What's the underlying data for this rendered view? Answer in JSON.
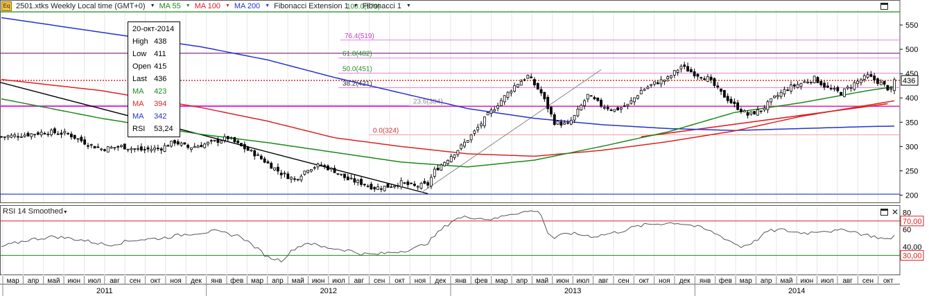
{
  "header": {
    "icon_label": "Eq",
    "symbol": "2501.xtks Weekly Local time (GMT+0)",
    "ma55_label": "MA 55",
    "ma100_label": "MA 100",
    "ma200_label": "MA 200",
    "fib_ext_label": "Fibonacci Extension 1",
    "fib_label": "Fibonacci 1"
  },
  "info": {
    "date": "20-окт-2014",
    "rows": [
      {
        "label": "High",
        "value": "438",
        "color": "#000000"
      },
      {
        "label": "Low",
        "value": "411",
        "color": "#000000"
      },
      {
        "label": "Open",
        "value": "415",
        "color": "#000000"
      },
      {
        "label": "Last",
        "value": "436",
        "color": "#000000"
      },
      {
        "label": "MA",
        "value": "423",
        "color": "#1a8a1a"
      },
      {
        "label": "MA",
        "value": "394",
        "color": "#dd2222"
      },
      {
        "label": "MA",
        "value": "342",
        "color": "#2233cc"
      },
      {
        "label": "RSI",
        "value": "53,24",
        "color": "#000000"
      }
    ]
  },
  "rsi": {
    "title": "RSI 14 Smoothed",
    "tick_labels": [
      "80",
      "70,00",
      "60",
      "40,00",
      "30,00"
    ]
  },
  "colors": {
    "ma55": "#1a8a1a",
    "ma100": "#dd2222",
    "ma200": "#2233cc",
    "fib": "#cc33cc",
    "candle_up": "#ffffff",
    "candle_down": "#000000"
  },
  "chart_data": {
    "type": "candlestick",
    "y_axis": {
      "range": [
        185,
        590
      ],
      "tick_labels": [
        "550",
        "500",
        "450",
        "400",
        "350",
        "300",
        "250",
        "200"
      ],
      "ticks": [
        550,
        500,
        450,
        400,
        350,
        300,
        250,
        200
      ]
    },
    "last_price_label": "436",
    "last_price": 436,
    "fibonacci_levels": [
      {
        "label": "100.0(579)",
        "value": 579
      },
      {
        "label": "76.4(519)",
        "value": 519
      },
      {
        "label": "61.8(482)",
        "value": 482
      },
      {
        "label": "50.0(451)",
        "value": 451
      },
      {
        "label": "38.2(421)",
        "value": 421
      },
      {
        "label": "23.6(384)",
        "value": 384
      },
      {
        "label": "0.0(324)",
        "value": 324
      }
    ],
    "horizontal_lines": [
      {
        "value": 577,
        "color": "#1a8a1a"
      },
      {
        "value": 492,
        "color": "#883388"
      },
      {
        "value": 436,
        "color": "#cc0000",
        "style": "dotted"
      },
      {
        "value": 383,
        "color": "#dd22dd"
      },
      {
        "value": 202,
        "color": "#2233cc"
      }
    ],
    "month_labels": [
      "мар",
      "апр",
      "май",
      "июн",
      "июл",
      "авг",
      "сен",
      "окт",
      "ноя",
      "дек",
      "янв",
      "фев",
      "мар",
      "апр",
      "май",
      "июн",
      "июл",
      "авг",
      "сен",
      "окт",
      "ноя",
      "дек",
      "янв",
      "фев",
      "мар",
      "апр",
      "май",
      "июн",
      "июл",
      "авг",
      "сен",
      "окт",
      "ноя",
      "дек",
      "янв",
      "фев",
      "мар",
      "апр",
      "май",
      "июн",
      "июл",
      "авг",
      "сен",
      "окт"
    ],
    "year_labels": [
      "2011",
      "2012",
      "2013",
      "2014"
    ],
    "close_anchors": [
      [
        0,
        320
      ],
      [
        8,
        325
      ],
      [
        14,
        330
      ],
      [
        20,
        326
      ],
      [
        26,
        305
      ],
      [
        30,
        295
      ],
      [
        36,
        300
      ],
      [
        42,
        293
      ],
      [
        48,
        297
      ],
      [
        52,
        310
      ],
      [
        56,
        298
      ],
      [
        60,
        303
      ],
      [
        64,
        310
      ],
      [
        68,
        318
      ],
      [
        72,
        300
      ],
      [
        76,
        285
      ],
      [
        80,
        265
      ],
      [
        84,
        245
      ],
      [
        88,
        232
      ],
      [
        92,
        255
      ],
      [
        96,
        262
      ],
      [
        100,
        250
      ],
      [
        104,
        232
      ],
      [
        108,
        225
      ],
      [
        112,
        215
      ],
      [
        116,
        218
      ],
      [
        120,
        225
      ],
      [
        124,
        218
      ],
      [
        128,
        222
      ],
      [
        130,
        250
      ],
      [
        134,
        275
      ],
      [
        138,
        300
      ],
      [
        142,
        330
      ],
      [
        146,
        365
      ],
      [
        150,
        395
      ],
      [
        154,
        425
      ],
      [
        158,
        445
      ],
      [
        162,
        410
      ],
      [
        166,
        350
      ],
      [
        170,
        345
      ],
      [
        172,
        362
      ],
      [
        176,
        405
      ],
      [
        180,
        385
      ],
      [
        184,
        375
      ],
      [
        188,
        385
      ],
      [
        192,
        415
      ],
      [
        196,
        430
      ],
      [
        200,
        440
      ],
      [
        204,
        465
      ],
      [
        208,
        450
      ],
      [
        212,
        440
      ],
      [
        216,
        410
      ],
      [
        220,
        385
      ],
      [
        224,
        365
      ],
      [
        228,
        375
      ],
      [
        232,
        400
      ],
      [
        236,
        420
      ],
      [
        240,
        430
      ],
      [
        244,
        440
      ],
      [
        248,
        420
      ],
      [
        252,
        410
      ],
      [
        256,
        430
      ],
      [
        260,
        445
      ],
      [
        264,
        430
      ],
      [
        267,
        415
      ],
      [
        268,
        436
      ]
    ],
    "ma55_anchors": [
      [
        0,
        398
      ],
      [
        30,
        358
      ],
      [
        60,
        325
      ],
      [
        80,
        308
      ],
      [
        100,
        288
      ],
      [
        120,
        268
      ],
      [
        140,
        258
      ],
      [
        160,
        272
      ],
      [
        180,
        300
      ],
      [
        200,
        330
      ],
      [
        220,
        370
      ],
      [
        240,
        390
      ],
      [
        260,
        415
      ],
      [
        268,
        423
      ]
    ],
    "ma100_anchors": [
      [
        0,
        438
      ],
      [
        30,
        415
      ],
      [
        60,
        380
      ],
      [
        80,
        352
      ],
      [
        100,
        318
      ],
      [
        120,
        300
      ],
      [
        140,
        285
      ],
      [
        160,
        280
      ],
      [
        180,
        292
      ],
      [
        200,
        310
      ],
      [
        220,
        332
      ],
      [
        240,
        362
      ],
      [
        260,
        385
      ],
      [
        268,
        394
      ]
    ],
    "ma200_anchors": [
      [
        0,
        565
      ],
      [
        30,
        535
      ],
      [
        60,
        505
      ],
      [
        80,
        478
      ],
      [
        100,
        442
      ],
      [
        120,
        410
      ],
      [
        140,
        378
      ],
      [
        160,
        358
      ],
      [
        180,
        345
      ],
      [
        200,
        337
      ],
      [
        220,
        333
      ],
      [
        240,
        337
      ],
      [
        260,
        341
      ],
      [
        268,
        342
      ]
    ],
    "rsi_anchors": [
      [
        0,
        40
      ],
      [
        8,
        48
      ],
      [
        16,
        52
      ],
      [
        24,
        48
      ],
      [
        32,
        42
      ],
      [
        40,
        48
      ],
      [
        48,
        50
      ],
      [
        56,
        55
      ],
      [
        64,
        58
      ],
      [
        72,
        52
      ],
      [
        76,
        40
      ],
      [
        80,
        28
      ],
      [
        84,
        24
      ],
      [
        88,
        38
      ],
      [
        92,
        45
      ],
      [
        96,
        40
      ],
      [
        100,
        38
      ],
      [
        104,
        36
      ],
      [
        108,
        32
      ],
      [
        112,
        31
      ],
      [
        116,
        33
      ],
      [
        120,
        35
      ],
      [
        124,
        38
      ],
      [
        128,
        45
      ],
      [
        132,
        60
      ],
      [
        136,
        72
      ],
      [
        140,
        75
      ],
      [
        144,
        73
      ],
      [
        148,
        72
      ],
      [
        152,
        78
      ],
      [
        156,
        80
      ],
      [
        160,
        82
      ],
      [
        162,
        78
      ],
      [
        164,
        56
      ],
      [
        166,
        50
      ],
      [
        170,
        56
      ],
      [
        174,
        54
      ],
      [
        178,
        52
      ],
      [
        182,
        55
      ],
      [
        186,
        58
      ],
      [
        190,
        63
      ],
      [
        194,
        66
      ],
      [
        198,
        67
      ],
      [
        202,
        68
      ],
      [
        206,
        66
      ],
      [
        210,
        62
      ],
      [
        214,
        56
      ],
      [
        218,
        48
      ],
      [
        222,
        40
      ],
      [
        226,
        46
      ],
      [
        230,
        58
      ],
      [
        234,
        60
      ],
      [
        238,
        57
      ],
      [
        242,
        56
      ],
      [
        246,
        59
      ],
      [
        250,
        58
      ],
      [
        254,
        60
      ],
      [
        258,
        55
      ],
      [
        262,
        52
      ],
      [
        266,
        48
      ],
      [
        268,
        53
      ]
    ]
  }
}
